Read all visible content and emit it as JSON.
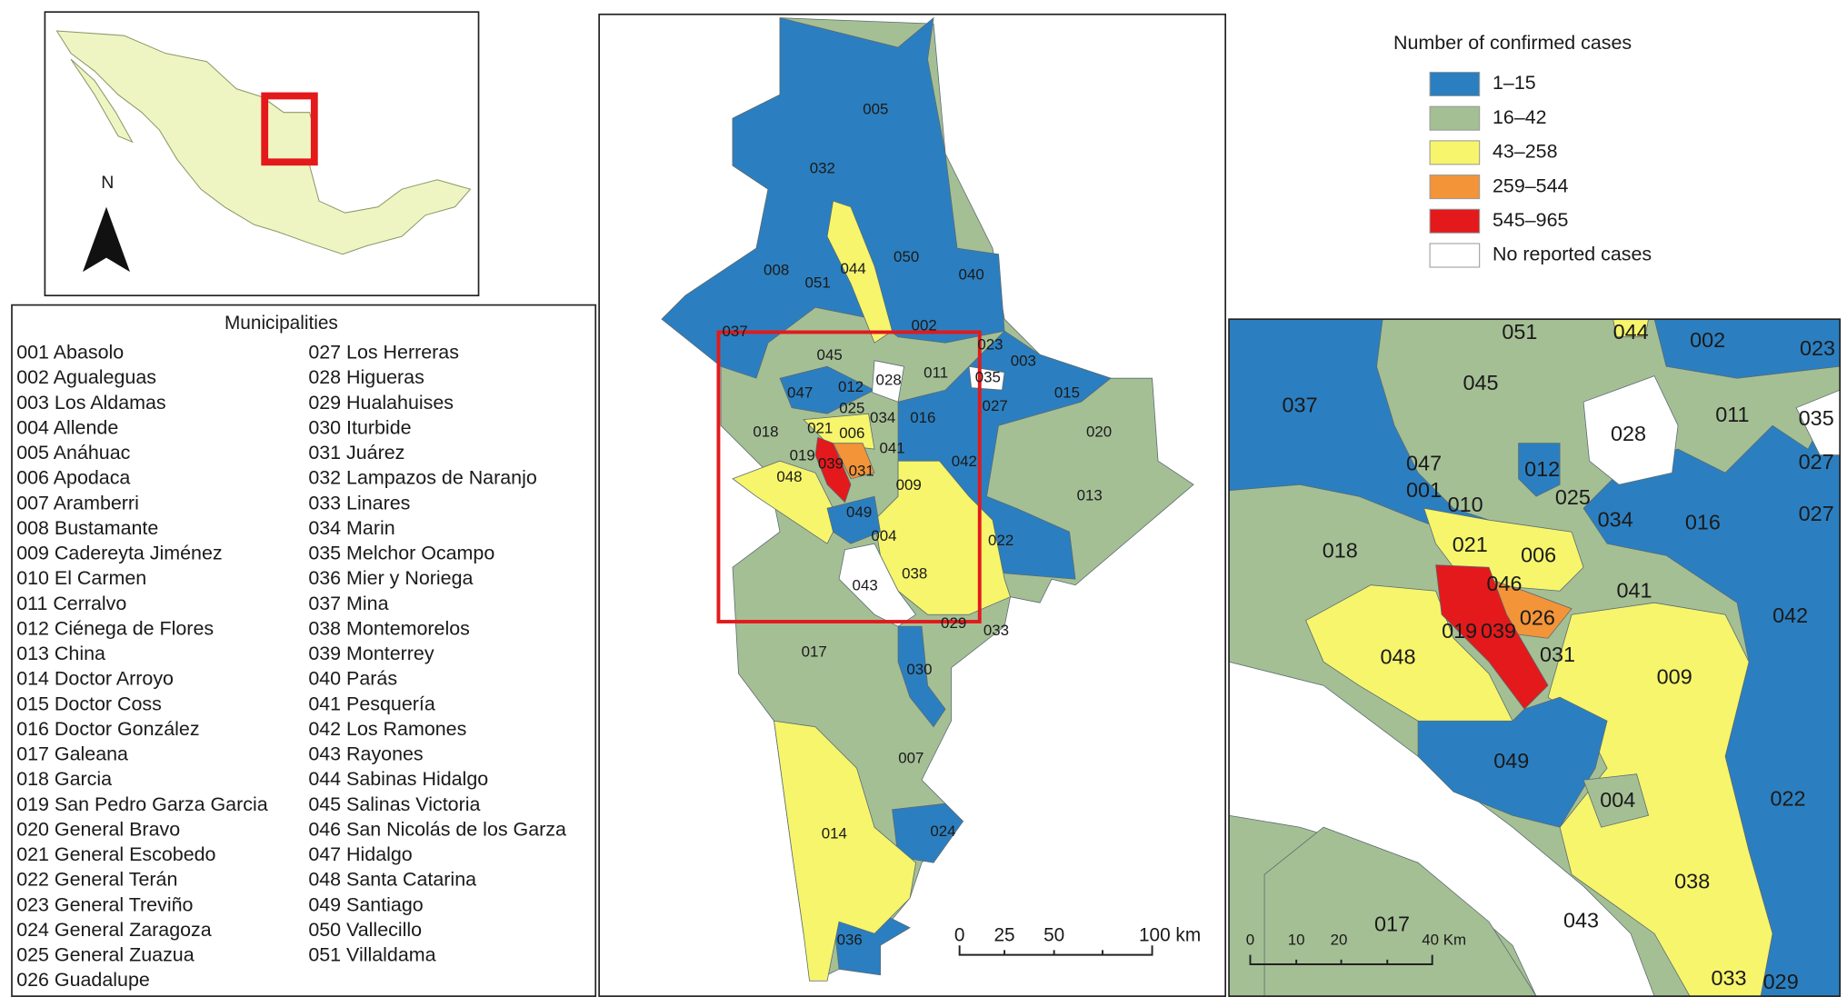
{
  "inset_map": {
    "north_label": "N"
  },
  "municipalities": {
    "title": "Municipalities",
    "items": [
      "001 Abasolo",
      "002 Agualeguas",
      "003 Los Aldamas",
      "004 Allende",
      "005 Anáhuac",
      "006 Apodaca",
      "007 Aramberri",
      "008 Bustamante",
      "009 Cadereyta Jiménez",
      "010 El Carmen",
      "011 Cerralvo",
      "012 Ciénega de Flores",
      "013 China",
      "014 Doctor Arroyo",
      "015 Doctor Coss",
      "016 Doctor González",
      "017 Galeana",
      "018 Garcia",
      "019 San Pedro Garza Garcia",
      "020 General Bravo",
      "021 General Escobedo",
      "022 General Terán",
      "023 General Treviño",
      "024 General Zaragoza",
      "025 General Zuazua",
      "026 Guadalupe",
      "027 Los Herreras",
      "028 Higueras",
      "029 Hualahuises",
      "030 Iturbide",
      "031 Juárez",
      "032 Lampazos de Naranjo",
      "033 Linares",
      "034 Marin",
      "035 Melchor Ocampo",
      "036 Mier y Noriega",
      "037 Mina",
      "038 Montemorelos",
      "039 Monterrey",
      "040 Parás",
      "041 Pesquería",
      "042 Los Ramones",
      "043 Rayones",
      "044 Sabinas Hidalgo",
      "045 Salinas Victoria",
      "046 San Nicolás de los Garza",
      "047 Hidalgo",
      "048 Santa Catarina",
      "049 Santiago",
      "050 Vallecillo",
      "051 Villaldama"
    ]
  },
  "legend": {
    "title": "Number of confirmed cases",
    "items": [
      {
        "label": "1–15",
        "color": "#2b7fc0"
      },
      {
        "label": "16–42",
        "color": "#a5bf95"
      },
      {
        "label": "43–258",
        "color": "#f6f56c"
      },
      {
        "label": "259–544",
        "color": "#f39439"
      },
      {
        "label": "545–965",
        "color": "#e3191c"
      },
      {
        "label": "No reported cases",
        "color": "#ffffff"
      }
    ]
  },
  "main_map": {
    "labels": [
      "005",
      "032",
      "044",
      "050",
      "040",
      "008",
      "051",
      "037",
      "002",
      "023",
      "003",
      "045",
      "028",
      "011",
      "035",
      "015",
      "047",
      "012",
      "027",
      "025",
      "034",
      "016",
      "020",
      "018",
      "021",
      "006",
      "041",
      "042",
      "019",
      "039",
      "031",
      "048",
      "009",
      "013",
      "049",
      "004",
      "022",
      "043",
      "038",
      "029",
      "033",
      "017",
      "030",
      "007",
      "014",
      "024",
      "036"
    ],
    "scale_bar": [
      "0",
      "25",
      "50",
      "100 km"
    ]
  },
  "zoom_map": {
    "labels": [
      "051",
      "044",
      "002",
      "023",
      "045",
      "037",
      "028",
      "011",
      "035",
      "047",
      "001",
      "012",
      "027",
      "025",
      "010",
      "034",
      "016",
      "027",
      "018",
      "021",
      "006",
      "046",
      "041",
      "042",
      "026",
      "019",
      "039",
      "031",
      "048",
      "009",
      "049",
      "004",
      "022",
      "038",
      "043",
      "017",
      "033",
      "029"
    ],
    "scale_bar": [
      "0",
      "10",
      "20",
      "40 Km"
    ]
  }
}
